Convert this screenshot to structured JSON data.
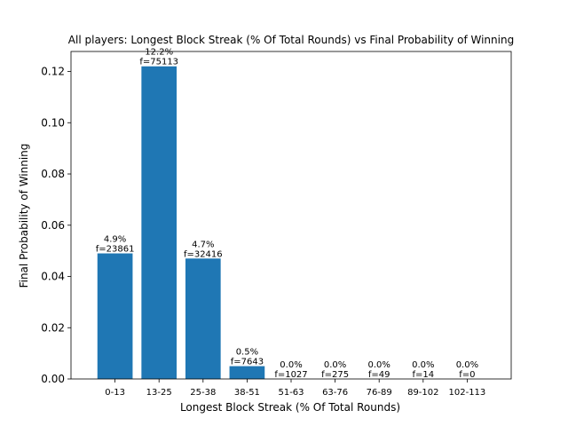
{
  "chart_data": {
    "type": "bar",
    "title": "All players: Longest Block Streak (% Of Total Rounds) vs Final Probability of Winning",
    "xlabel": "Longest Block Streak (% Of Total Rounds)",
    "ylabel": "Final Probability of Winning",
    "categories": [
      "0-13",
      "13-25",
      "25-38",
      "38-51",
      "51-63",
      "63-76",
      "76-89",
      "89-102",
      "102-113"
    ],
    "values": [
      0.049,
      0.122,
      0.047,
      0.005,
      0.0,
      0.0,
      0.0,
      0.0,
      0.0
    ],
    "percent_labels": [
      "4.9%",
      "12.2%",
      "4.7%",
      "0.5%",
      "0.0%",
      "0.0%",
      "0.0%",
      "0.0%",
      "0.0%"
    ],
    "freq_labels": [
      "f=23861",
      "f=75113",
      "f=32416",
      "f=7643",
      "f=1027",
      "f=275",
      "f=49",
      "f=14",
      "f=0"
    ],
    "ylim": [
      0,
      0.1278
    ],
    "yticks": [
      0.0,
      0.02,
      0.04,
      0.06,
      0.08,
      0.1,
      0.12
    ],
    "ytick_labels": [
      "0.00",
      "0.02",
      "0.04",
      "0.06",
      "0.08",
      "0.10",
      "0.12"
    ],
    "grid": false,
    "legend": "none",
    "colors": {
      "bar": "#1f77b4",
      "axis": "#000000"
    }
  }
}
